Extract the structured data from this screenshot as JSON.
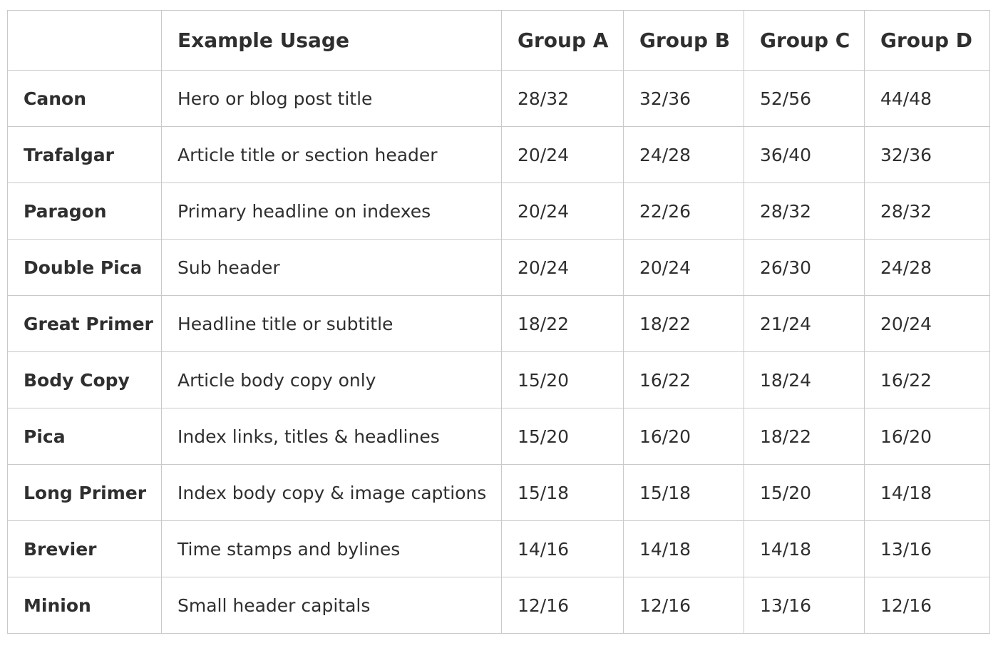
{
  "table": {
    "headers": [
      "",
      "Example Usage",
      "Group A",
      "Group B",
      "Group C",
      "Group D"
    ],
    "rows": [
      {
        "name": "Canon",
        "usage": "Hero or blog post title",
        "group_a": "28/32",
        "group_b": "32/36",
        "group_c": "52/56",
        "group_d": "44/48"
      },
      {
        "name": "Trafalgar",
        "usage": "Article title or section header",
        "group_a": "20/24",
        "group_b": "24/28",
        "group_c": "36/40",
        "group_d": "32/36"
      },
      {
        "name": "Paragon",
        "usage": "Primary headline on indexes",
        "group_a": "20/24",
        "group_b": "22/26",
        "group_c": "28/32",
        "group_d": "28/32"
      },
      {
        "name": "Double Pica",
        "usage": "Sub header",
        "group_a": "20/24",
        "group_b": "20/24",
        "group_c": "26/30",
        "group_d": "24/28"
      },
      {
        "name": "Great Primer",
        "usage": "Headline title or subtitle",
        "group_a": "18/22",
        "group_b": "18/22",
        "group_c": "21/24",
        "group_d": "20/24"
      },
      {
        "name": "Body Copy",
        "usage": "Article body copy only",
        "group_a": "15/20",
        "group_b": "16/22",
        "group_c": "18/24",
        "group_d": "16/22"
      },
      {
        "name": "Pica",
        "usage": "Index links, titles & headlines",
        "group_a": "15/20",
        "group_b": "16/20",
        "group_c": "18/22",
        "group_d": "16/20"
      },
      {
        "name": "Long Primer",
        "usage": "Index body copy & image captions",
        "group_a": "15/18",
        "group_b": "15/18",
        "group_c": "15/20",
        "group_d": "14/18"
      },
      {
        "name": "Brevier",
        "usage": "Time stamps and bylines",
        "group_a": "14/16",
        "group_b": "14/18",
        "group_c": "14/18",
        "group_d": "13/16"
      },
      {
        "name": "Minion",
        "usage": "Small header capitals",
        "group_a": "12/16",
        "group_b": "12/16",
        "group_c": "13/16",
        "group_d": "12/16"
      }
    ]
  }
}
